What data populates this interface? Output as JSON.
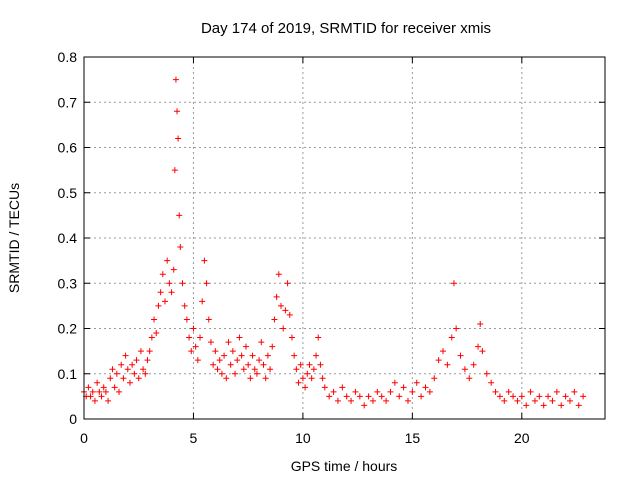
{
  "chart_data": {
    "type": "scatter",
    "title": "Day 174 of 2019, SRMTID for receiver xmis",
    "xlabel": "GPS time / hours",
    "ylabel": "SRMTID / TECUs",
    "xlim": [
      0,
      23.8
    ],
    "ylim": [
      0,
      0.8
    ],
    "xticks": [
      0,
      5,
      10,
      15,
      20
    ],
    "xtick_labels": [
      "0",
      "5",
      "10",
      "15",
      "20"
    ],
    "yticks": [
      0,
      0.1,
      0.2,
      0.3,
      0.4,
      0.5,
      0.6,
      0.7,
      0.8
    ],
    "ytick_labels": [
      "0",
      "0.1",
      "0.2",
      "0.3",
      "0.4",
      "0.5",
      "0.6",
      "0.7",
      "0.8"
    ],
    "grid": true,
    "marker": "plus",
    "color": "#ff0000",
    "series": [
      {
        "name": "SRMTID",
        "points": [
          [
            0.0,
            0.06
          ],
          [
            0.1,
            0.05
          ],
          [
            0.2,
            0.07
          ],
          [
            0.3,
            0.05
          ],
          [
            0.4,
            0.06
          ],
          [
            0.5,
            0.04
          ],
          [
            0.6,
            0.08
          ],
          [
            0.7,
            0.06
          ],
          [
            0.8,
            0.05
          ],
          [
            0.9,
            0.07
          ],
          [
            1.0,
            0.06
          ],
          [
            1.1,
            0.04
          ],
          [
            1.2,
            0.09
          ],
          [
            1.3,
            0.11
          ],
          [
            1.4,
            0.07
          ],
          [
            1.5,
            0.1
          ],
          [
            1.6,
            0.06
          ],
          [
            1.7,
            0.12
          ],
          [
            1.8,
            0.09
          ],
          [
            1.9,
            0.14
          ],
          [
            2.0,
            0.11
          ],
          [
            2.1,
            0.08
          ],
          [
            2.2,
            0.12
          ],
          [
            2.3,
            0.1
          ],
          [
            2.4,
            0.13
          ],
          [
            2.5,
            0.09
          ],
          [
            2.6,
            0.15
          ],
          [
            2.7,
            0.11
          ],
          [
            2.8,
            0.1
          ],
          [
            2.9,
            0.13
          ],
          [
            3.0,
            0.15
          ],
          [
            3.1,
            0.18
          ],
          [
            3.2,
            0.22
          ],
          [
            3.3,
            0.19
          ],
          [
            3.4,
            0.25
          ],
          [
            3.5,
            0.28
          ],
          [
            3.6,
            0.32
          ],
          [
            3.7,
            0.26
          ],
          [
            3.8,
            0.35
          ],
          [
            3.9,
            0.3
          ],
          [
            4.0,
            0.28
          ],
          [
            4.1,
            0.33
          ],
          [
            4.15,
            0.55
          ],
          [
            4.2,
            0.75
          ],
          [
            4.25,
            0.68
          ],
          [
            4.3,
            0.62
          ],
          [
            4.35,
            0.45
          ],
          [
            4.4,
            0.38
          ],
          [
            4.5,
            0.3
          ],
          [
            4.6,
            0.25
          ],
          [
            4.7,
            0.22
          ],
          [
            4.8,
            0.18
          ],
          [
            4.9,
            0.15
          ],
          [
            5.0,
            0.2
          ],
          [
            5.1,
            0.16
          ],
          [
            5.2,
            0.13
          ],
          [
            5.3,
            0.18
          ],
          [
            5.4,
            0.26
          ],
          [
            5.5,
            0.35
          ],
          [
            5.6,
            0.3
          ],
          [
            5.7,
            0.22
          ],
          [
            5.8,
            0.17
          ],
          [
            5.9,
            0.12
          ],
          [
            6.0,
            0.15
          ],
          [
            6.1,
            0.11
          ],
          [
            6.2,
            0.13
          ],
          [
            6.3,
            0.1
          ],
          [
            6.4,
            0.14
          ],
          [
            6.5,
            0.09
          ],
          [
            6.6,
            0.17
          ],
          [
            6.7,
            0.12
          ],
          [
            6.8,
            0.15
          ],
          [
            6.9,
            0.1
          ],
          [
            7.0,
            0.13
          ],
          [
            7.1,
            0.18
          ],
          [
            7.2,
            0.14
          ],
          [
            7.3,
            0.11
          ],
          [
            7.4,
            0.16
          ],
          [
            7.5,
            0.12
          ],
          [
            7.6,
            0.09
          ],
          [
            7.7,
            0.14
          ],
          [
            7.8,
            0.11
          ],
          [
            7.9,
            0.1
          ],
          [
            8.0,
            0.13
          ],
          [
            8.1,
            0.17
          ],
          [
            8.2,
            0.12
          ],
          [
            8.3,
            0.09
          ],
          [
            8.4,
            0.14
          ],
          [
            8.5,
            0.11
          ],
          [
            8.6,
            0.16
          ],
          [
            8.7,
            0.22
          ],
          [
            8.8,
            0.27
          ],
          [
            8.9,
            0.32
          ],
          [
            9.0,
            0.25
          ],
          [
            9.1,
            0.2
          ],
          [
            9.2,
            0.24
          ],
          [
            9.3,
            0.3
          ],
          [
            9.4,
            0.23
          ],
          [
            9.5,
            0.18
          ],
          [
            9.6,
            0.14
          ],
          [
            9.7,
            0.11
          ],
          [
            9.8,
            0.08
          ],
          [
            9.9,
            0.12
          ],
          [
            10.0,
            0.09
          ],
          [
            10.1,
            0.07
          ],
          [
            10.2,
            0.1
          ],
          [
            10.3,
            0.12
          ],
          [
            10.4,
            0.09
          ],
          [
            10.5,
            0.11
          ],
          [
            10.6,
            0.14
          ],
          [
            10.7,
            0.18
          ],
          [
            10.8,
            0.12
          ],
          [
            10.9,
            0.09
          ],
          [
            11.0,
            0.07
          ],
          [
            11.2,
            0.05
          ],
          [
            11.4,
            0.06
          ],
          [
            11.6,
            0.04
          ],
          [
            11.8,
            0.07
          ],
          [
            12.0,
            0.05
          ],
          [
            12.2,
            0.04
          ],
          [
            12.4,
            0.06
          ],
          [
            12.6,
            0.05
          ],
          [
            12.8,
            0.03
          ],
          [
            13.0,
            0.05
          ],
          [
            13.2,
            0.04
          ],
          [
            13.4,
            0.06
          ],
          [
            13.6,
            0.05
          ],
          [
            13.8,
            0.04
          ],
          [
            14.0,
            0.06
          ],
          [
            14.2,
            0.08
          ],
          [
            14.4,
            0.05
          ],
          [
            14.6,
            0.07
          ],
          [
            14.8,
            0.04
          ],
          [
            15.0,
            0.06
          ],
          [
            15.2,
            0.08
          ],
          [
            15.4,
            0.05
          ],
          [
            15.6,
            0.07
          ],
          [
            15.8,
            0.06
          ],
          [
            16.0,
            0.09
          ],
          [
            16.2,
            0.13
          ],
          [
            16.4,
            0.15
          ],
          [
            16.6,
            0.12
          ],
          [
            16.8,
            0.18
          ],
          [
            16.9,
            0.3
          ],
          [
            17.0,
            0.2
          ],
          [
            17.2,
            0.14
          ],
          [
            17.4,
            0.11
          ],
          [
            17.6,
            0.09
          ],
          [
            17.8,
            0.12
          ],
          [
            18.0,
            0.16
          ],
          [
            18.1,
            0.21
          ],
          [
            18.2,
            0.15
          ],
          [
            18.4,
            0.1
          ],
          [
            18.6,
            0.08
          ],
          [
            18.8,
            0.06
          ],
          [
            19.0,
            0.05
          ],
          [
            19.2,
            0.04
          ],
          [
            19.4,
            0.06
          ],
          [
            19.6,
            0.05
          ],
          [
            19.8,
            0.04
          ],
          [
            20.0,
            0.05
          ],
          [
            20.2,
            0.03
          ],
          [
            20.4,
            0.06
          ],
          [
            20.6,
            0.04
          ],
          [
            20.8,
            0.05
          ],
          [
            21.0,
            0.03
          ],
          [
            21.2,
            0.05
          ],
          [
            21.4,
            0.04
          ],
          [
            21.6,
            0.06
          ],
          [
            21.8,
            0.03
          ],
          [
            22.0,
            0.05
          ],
          [
            22.2,
            0.04
          ],
          [
            22.4,
            0.06
          ],
          [
            22.6,
            0.03
          ],
          [
            22.8,
            0.05
          ]
        ]
      }
    ]
  }
}
